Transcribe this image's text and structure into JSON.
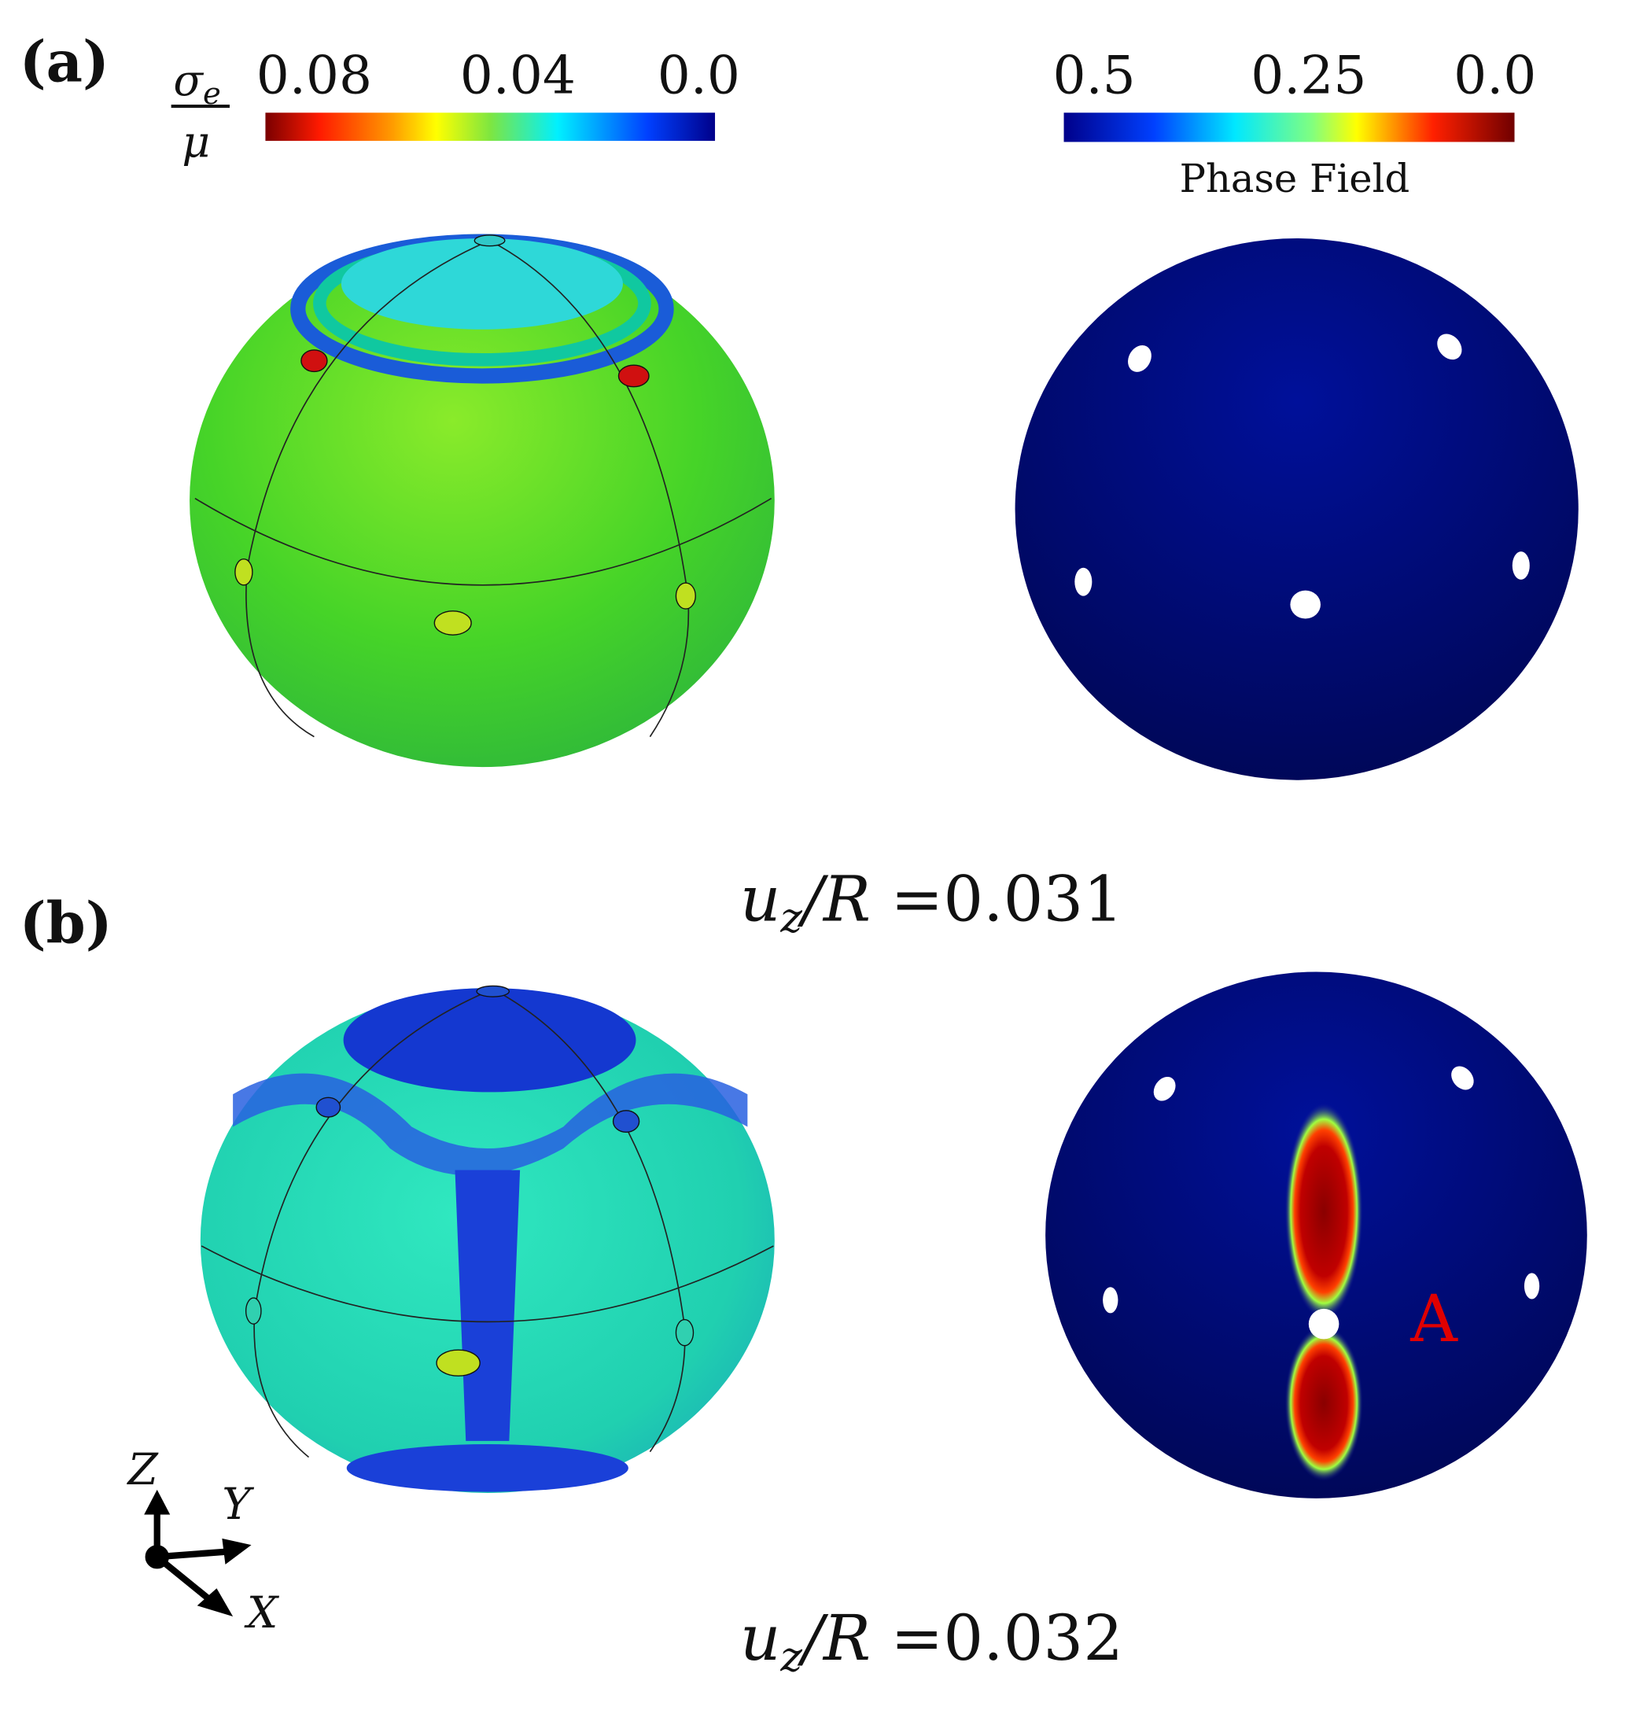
{
  "panel_a": {
    "label": "(a)",
    "stress_colorbar": {
      "numerator": "σ",
      "subscript": "e",
      "denominator": "μ",
      "ticks": [
        "0.08",
        "0.04",
        "0.0"
      ]
    },
    "phase_colorbar": {
      "ticks": [
        "0.5",
        "0.25",
        "0.0"
      ],
      "title": "Phase Field"
    },
    "caption": {
      "symbol": "u",
      "subscript": "z",
      "rest": "/R =",
      "value": "0.031"
    }
  },
  "panel_b": {
    "label": "(b)",
    "crack_label": "A",
    "caption": {
      "symbol": "u",
      "subscript": "z",
      "rest": "/R =",
      "value": "0.032"
    }
  },
  "axes": {
    "z": "Z",
    "y": "Y",
    "x": "X"
  }
}
